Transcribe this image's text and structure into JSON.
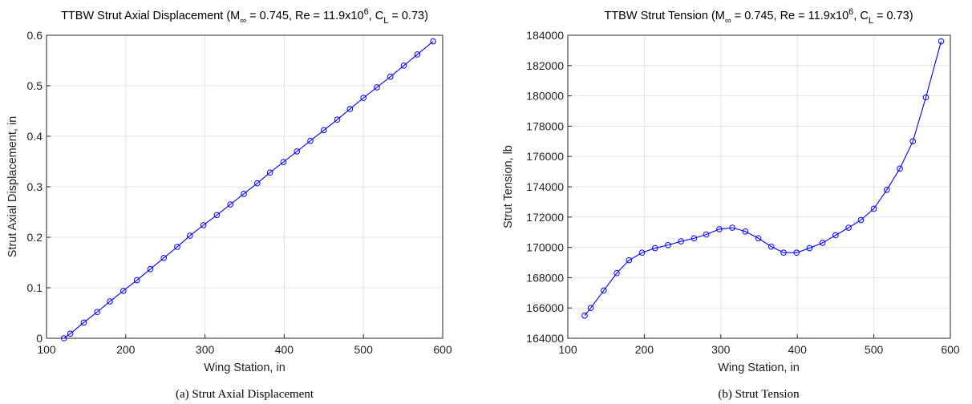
{
  "chart_data": [
    {
      "type": "line",
      "title_parts": {
        "prefix": "TTBW Strut Axial Displacement (M",
        "mach_sub": "∞",
        "mid": " = 0.745, Re = 11.9x10",
        "re_sup": "6",
        "cl_pre": ", C",
        "cl_sub": "L",
        "suffix": " = 0.73)"
      },
      "xlabel": "Wing Station, in",
      "ylabel": "Strut Axial Displacement, in",
      "caption": "(a) Strut Axial Displacement",
      "xlim": [
        100,
        600
      ],
      "ylim": [
        0,
        0.6
      ],
      "xticks": [
        100,
        200,
        300,
        400,
        500,
        600
      ],
      "xtick_labels": [
        "100",
        "200",
        "300",
        "400",
        "500",
        "600"
      ],
      "yticks": [
        0,
        0.1,
        0.2,
        0.3,
        0.4,
        0.5,
        0.6
      ],
      "ytick_labels": [
        "0",
        "0.1",
        "0.2",
        "0.3",
        "0.4",
        "0.5",
        "0.6"
      ],
      "grid": true,
      "marker": "circle",
      "color": "#0000ff",
      "series": [
        {
          "x": [
            122,
            130,
            147,
            164,
            180,
            197,
            214,
            231,
            248,
            265,
            281,
            298,
            315,
            332,
            349,
            366,
            382,
            399,
            416,
            433,
            450,
            467,
            483,
            500,
            517,
            534,
            551,
            568,
            588
          ],
          "y": [
            0.0,
            0.009,
            0.031,
            0.052,
            0.073,
            0.094,
            0.115,
            0.137,
            0.159,
            0.181,
            0.203,
            0.224,
            0.244,
            0.265,
            0.286,
            0.307,
            0.328,
            0.349,
            0.37,
            0.391,
            0.412,
            0.433,
            0.454,
            0.476,
            0.497,
            0.518,
            0.54,
            0.562,
            0.588
          ]
        }
      ]
    },
    {
      "type": "line",
      "title_parts": {
        "prefix": "TTBW Strut Tension (M",
        "mach_sub": "∞",
        "mid": " = 0.745, Re = 11.9x10",
        "re_sup": "6",
        "cl_pre": ", C",
        "cl_sub": "L",
        "suffix": " = 0.73)"
      },
      "xlabel": "Wing Station, in",
      "ylabel": "Strut Tension, lb",
      "caption": "(b) Strut Tension",
      "xlim": [
        100,
        600
      ],
      "ylim": [
        164000,
        184000
      ],
      "xticks": [
        100,
        200,
        300,
        400,
        500,
        600
      ],
      "xtick_labels": [
        "100",
        "200",
        "300",
        "400",
        "500",
        "600"
      ],
      "yticks": [
        164000,
        166000,
        168000,
        170000,
        172000,
        174000,
        176000,
        178000,
        180000,
        182000,
        184000
      ],
      "ytick_labels": [
        "164000",
        "166000",
        "168000",
        "170000",
        "172000",
        "174000",
        "176000",
        "178000",
        "180000",
        "182000",
        "184000"
      ],
      "grid": true,
      "marker": "circle",
      "color": "#0000ff",
      "series": [
        {
          "x": [
            122,
            130,
            147,
            164,
            180,
            197,
            214,
            231,
            248,
            265,
            281,
            298,
            315,
            332,
            349,
            366,
            382,
            399,
            416,
            433,
            450,
            467,
            483,
            500,
            517,
            534,
            551,
            568,
            588
          ],
          "y": [
            165500,
            166000,
            167150,
            168300,
            169150,
            169650,
            169950,
            170150,
            170400,
            170600,
            170850,
            171200,
            171300,
            171050,
            170600,
            170050,
            169650,
            169650,
            169950,
            170300,
            170800,
            171300,
            171800,
            172550,
            173800,
            175200,
            177000,
            179900,
            183600
          ]
        }
      ]
    }
  ]
}
